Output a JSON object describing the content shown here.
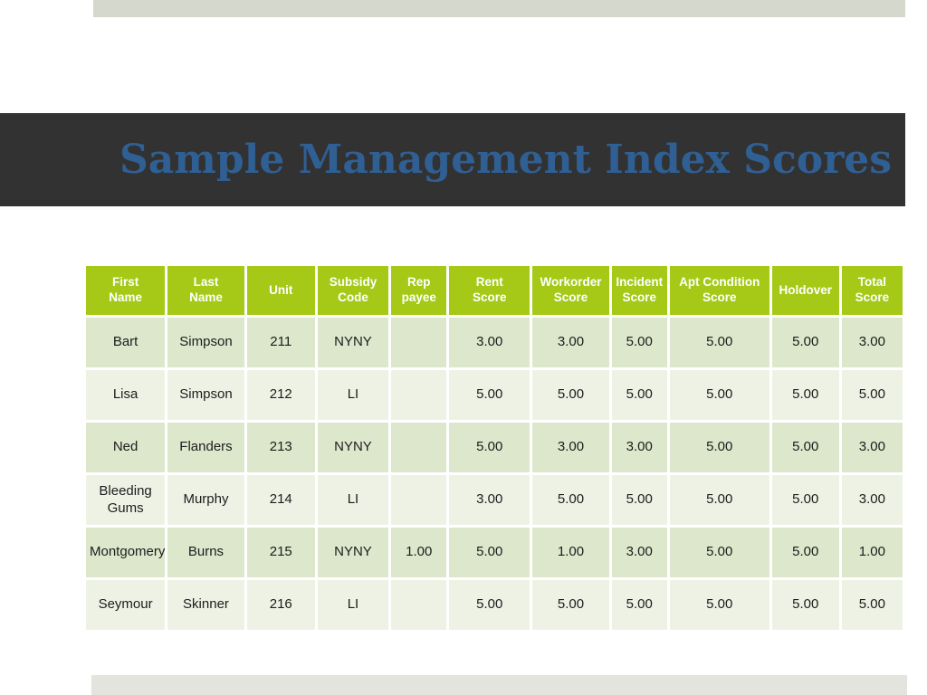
{
  "slide": {
    "title": "Sample Management Index Scores"
  },
  "table": {
    "columns": [
      "First\nName",
      "Last\nName",
      "Unit",
      "Subsidy\nCode",
      "Rep\npayee",
      "Rent\nScore",
      "Workorder\nScore",
      "Incident\nScore",
      "Apt Condition\nScore",
      "Holdover",
      "Total\nScore"
    ],
    "rows": [
      [
        "Bart",
        "Simpson",
        "211",
        "NYNY",
        "",
        "3.00",
        "3.00",
        "5.00",
        "5.00",
        "5.00",
        "3.00"
      ],
      [
        "Lisa",
        "Simpson",
        "212",
        "LI",
        "",
        "5.00",
        "5.00",
        "5.00",
        "5.00",
        "5.00",
        "5.00"
      ],
      [
        "Ned",
        "Flanders",
        "213",
        "NYNY",
        "",
        "5.00",
        "3.00",
        "3.00",
        "5.00",
        "5.00",
        "3.00"
      ],
      [
        "Bleeding Gums",
        "Murphy",
        "214",
        "LI",
        "",
        "3.00",
        "5.00",
        "5.00",
        "5.00",
        "5.00",
        "3.00"
      ],
      [
        "Montgomery",
        "Burns",
        "215",
        "NYNY",
        "1.00",
        "5.00",
        "1.00",
        "3.00",
        "5.00",
        "5.00",
        "1.00"
      ],
      [
        "Seymour",
        "Skinner",
        "216",
        "LI",
        "",
        "5.00",
        "5.00",
        "5.00",
        "5.00",
        "5.00",
        "5.00"
      ]
    ]
  },
  "colors": {
    "header_green": "#a5c916",
    "row_odd": "#dde7cc",
    "row_even": "#eef2e5",
    "banner_dark": "#323232",
    "title_blue": "#2f5f93",
    "top_bar": "#d5d8cc",
    "bottom_bar": "#e2e4dd"
  }
}
